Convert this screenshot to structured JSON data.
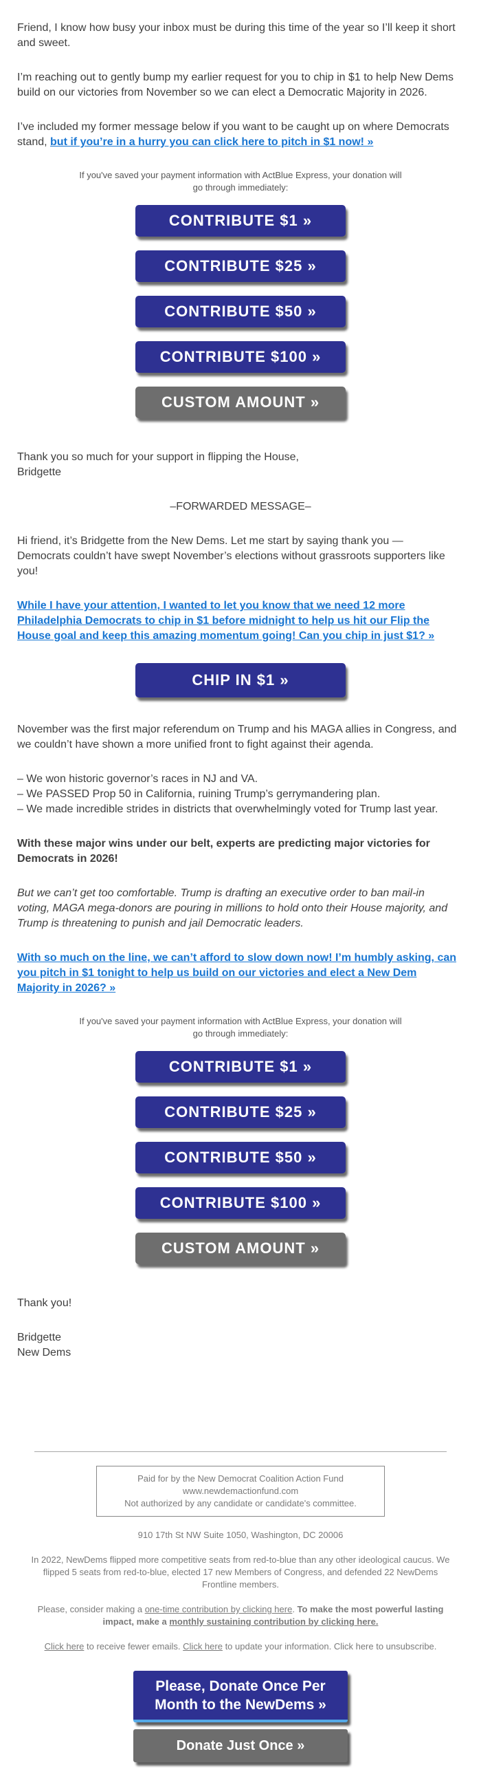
{
  "colors": {
    "link_blue": "#1976d2",
    "button_blue": "#2e3192",
    "button_gray": "#6e6e6e",
    "footer_accent_blue": "#54a9e8",
    "body_text": "#3e3e3e",
    "footer_text": "#7a7a7a"
  },
  "body": {
    "p1": "Friend, I know how busy your inbox must be during this time of the year so I’ll keep it short and sweet.",
    "p2": "I’m reaching out to gently bump my earlier request for you to chip in $1 to help New Dems build on our victories from November so we can elect a Democratic Majority in 2026.",
    "p3_prefix": "I’ve included my former message below if you want to be caught up on where Democrats stand, ",
    "p3_link": "but if you’re in a hurry you can click here to pitch in $1 now! »",
    "express_note": "If you've saved your payment information with ActBlue Express, your donation will go through immediately:",
    "thanks_house": "Thank you so much for your support in flipping the House,",
    "thanks_signature": "Bridgette",
    "forwarded": "–FORWARDED MESSAGE–",
    "p5": "Hi friend, it’s Bridgette from the New Dems. Let me start by saying thank you — Democrats couldn’t have swept November’s elections without grassroots supporters like you!",
    "p6_link": "While I have your attention, I wanted to let you know that we need 12 more Philadelphia Democrats to chip in $1 before midnight to help us hit our Flip the House goal and keep this amazing momentum going! Can you chip in just $1? »",
    "chip_button": "CHIP IN $1 »",
    "p7": "November was the first major referendum on Trump and his MAGA allies in Congress, and we couldn’t have shown a more unified front to fight against their agenda.",
    "wins_list": [
      "– We won historic governor’s races in NJ and VA.",
      "– We PASSED Prop 50 in California, ruining Trump’s gerrymandering plan.",
      "– We made incredible strides in districts that overwhelmingly voted for Trump last year."
    ],
    "p9_bold": "With these major wins under our belt, experts are predicting major victories for Democrats in 2026!",
    "p10_italic": "But we can’t get too comfortable. Trump is drafting an executive order to ban mail-in voting, MAGA mega-donors are pouring in millions to hold onto their House majority, and Trump is threatening to punish and jail Democratic leaders.",
    "p11_link": "With so much on the line, we can’t afford to slow down now! I’m humbly asking, can you pitch in $1 tonight to help us build on our victories and elect a New Dem Majority in 2026? »",
    "thank_you": "Thank you!",
    "sig_name": "Bridgette",
    "sig_org": "New Dems"
  },
  "donate": {
    "buttons": [
      {
        "label": "CONTRIBUTE $1 »",
        "variant": "blue"
      },
      {
        "label": "CONTRIBUTE $25 »",
        "variant": "blue"
      },
      {
        "label": "CONTRIBUTE $50 »",
        "variant": "blue"
      },
      {
        "label": "CONTRIBUTE $100 »",
        "variant": "blue"
      },
      {
        "label": "CUSTOM AMOUNT »",
        "variant": "gray"
      }
    ]
  },
  "footer": {
    "disclaimer_lines": [
      "Paid for by the New Democrat Coalition Action Fund",
      "www.newdemactionfund.com",
      "Not authorized by any candidate or candidate's committee."
    ],
    "address": "910 17th St NW Suite 1050, Washington, DC 20006",
    "about": "In 2022, NewDems flipped more competitive seats from red-to-blue than any other ideological caucus. We flipped 5 seats from red-to-blue, elected 17 new Members of Congress, and defended 22 NewDems Frontline members.",
    "contribute": {
      "prefix": "Please, consider making a ",
      "onetime_link": "one-time contribution by clicking here",
      "period": ". ",
      "bold_text": "To make the most powerful lasting impact, make a ",
      "monthly_link": "monthly sustaining contribution by clicking here."
    },
    "manage": {
      "fewer_link": "Click here",
      "fewer_text": " to receive fewer emails. ",
      "update_link": "Click here",
      "update_text": " to update your information. Click here to unsubscribe."
    },
    "monthly_button": "Please, Donate Once Per Month to the NewDems »",
    "once_button": "Donate Just Once »"
  }
}
